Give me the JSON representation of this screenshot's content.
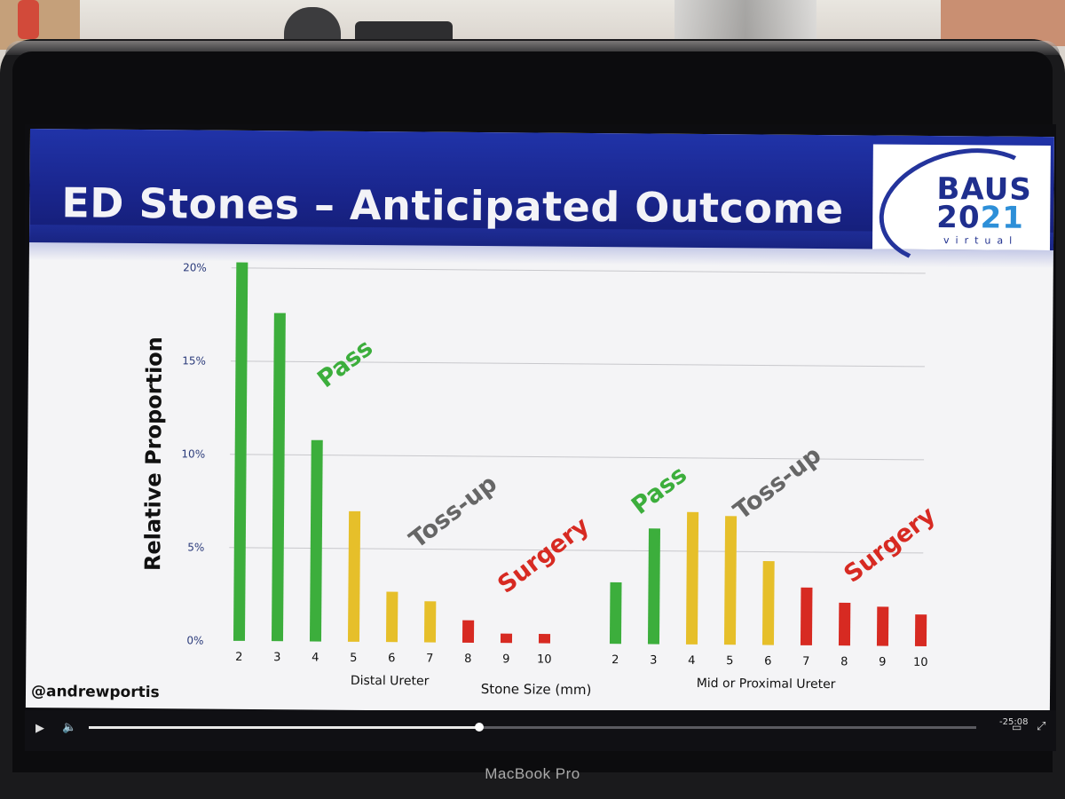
{
  "slide": {
    "title": "ED Stones – Anticipated Outcome",
    "logo": {
      "top": "BAUS",
      "year_a": "20",
      "year_b": "21",
      "sub": "virtual"
    },
    "handle": "@andrewportis"
  },
  "colors": {
    "pass": "#3cae3c",
    "tossup": "#e6bf2a",
    "surgery": "#d72a22",
    "banner": "#1b2690"
  },
  "chart_data": {
    "type": "bar",
    "ylabel": "Relative Proportion",
    "xlabel": "Stone Size (mm)",
    "yticks": [
      "0%",
      "5%",
      "10%",
      "15%",
      "20%"
    ],
    "ylim": [
      0,
      20
    ],
    "groups": [
      {
        "label": "Distal Ureter",
        "categories": [
          "2",
          "3",
          "4",
          "5",
          "6",
          "7",
          "8",
          "9",
          "10"
        ],
        "values": [
          20.3,
          17.6,
          10.8,
          7.0,
          2.7,
          2.2,
          1.2,
          0.5,
          0.5
        ],
        "outcome": [
          "pass",
          "pass",
          "pass",
          "tossup",
          "tossup",
          "tossup",
          "surgery",
          "surgery",
          "surgery"
        ]
      },
      {
        "label": "Mid or Proximal Ureter",
        "categories": [
          "2",
          "3",
          "4",
          "5",
          "6",
          "7",
          "8",
          "9",
          "10"
        ],
        "values": [
          3.3,
          6.2,
          7.1,
          6.9,
          4.5,
          3.1,
          2.3,
          2.1,
          1.7
        ],
        "outcome": [
          "pass",
          "pass",
          "tossup",
          "tossup",
          "tossup",
          "surgery",
          "surgery",
          "surgery",
          "surgery"
        ]
      }
    ],
    "annotations": [
      "Pass",
      "Toss-up",
      "Surgery",
      "Pass",
      "Toss-up",
      "Surgery"
    ]
  },
  "player": {
    "time": "-25:08"
  },
  "device": {
    "brand": "MacBook Pro"
  }
}
